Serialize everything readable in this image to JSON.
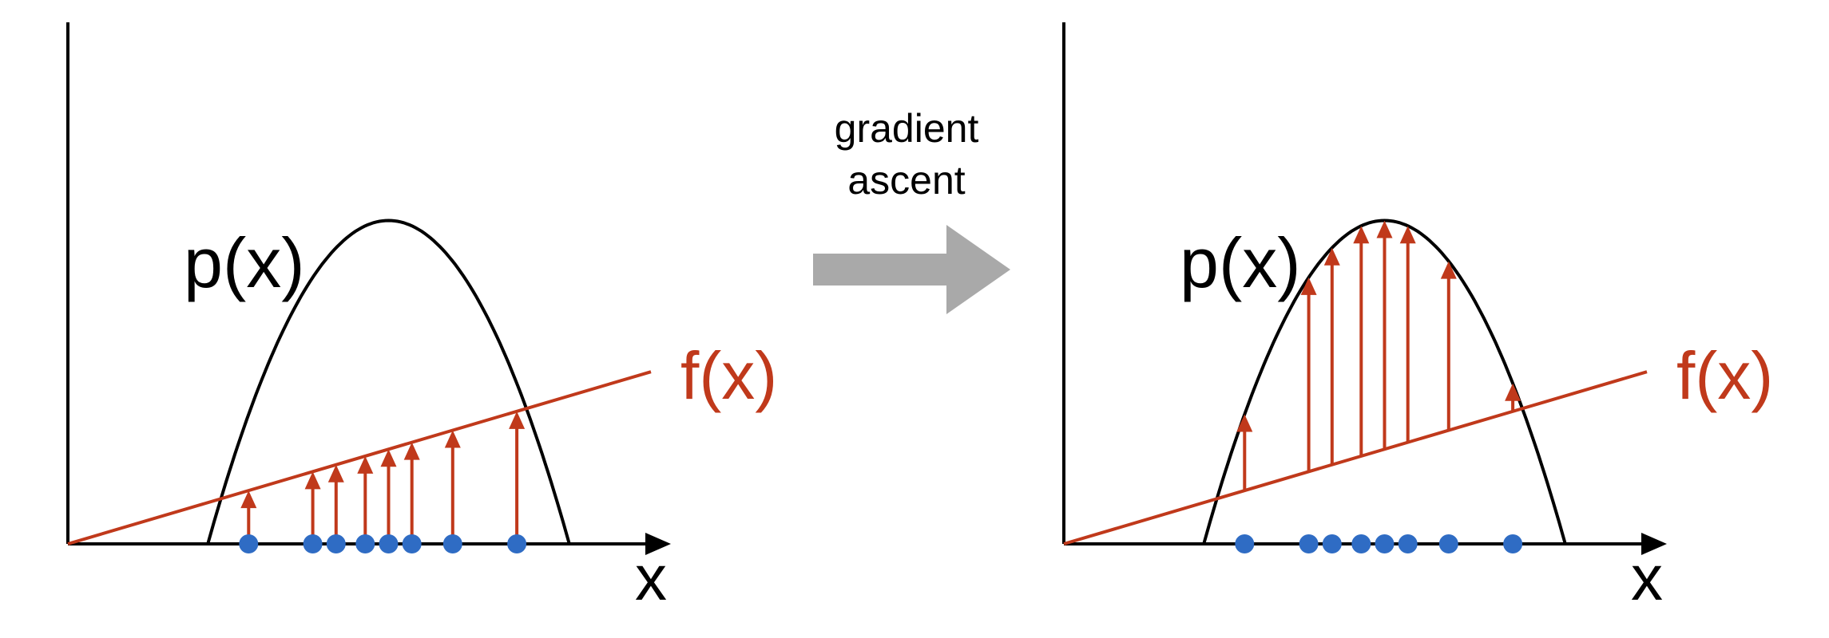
{
  "colors": {
    "axis": "#000000",
    "curve": "#000000",
    "line": "#c0391b",
    "arrow": "#c0391b",
    "dot": "#2f6cc4",
    "transition_arrow": "#a9a9a9"
  },
  "transition": {
    "line1": "gradient",
    "line2": "ascent"
  },
  "panels": [
    {
      "id": "before",
      "p_label": "p(x)",
      "f_label": "f(x)",
      "x_label": "x",
      "p_params": {
        "x0": 0.24,
        "x1": 0.86,
        "peak": 0.62
      },
      "f_params": {
        "slope": 0.33
      },
      "samples": [
        0.31,
        0.42,
        0.46,
        0.51,
        0.55,
        0.59,
        0.66,
        0.77
      ],
      "arrow_source": "f",
      "arrow_base": "axis"
    },
    {
      "id": "after",
      "p_label": "p(x)",
      "f_label": "f(x)",
      "x_label": "x",
      "p_params": {
        "x0": 0.24,
        "x1": 0.86,
        "peak": 0.62
      },
      "f_params": {
        "slope": 0.33
      },
      "samples": [
        0.31,
        0.42,
        0.46,
        0.51,
        0.55,
        0.59,
        0.66,
        0.77
      ],
      "arrow_source": "p",
      "arrow_base": "f"
    }
  ]
}
